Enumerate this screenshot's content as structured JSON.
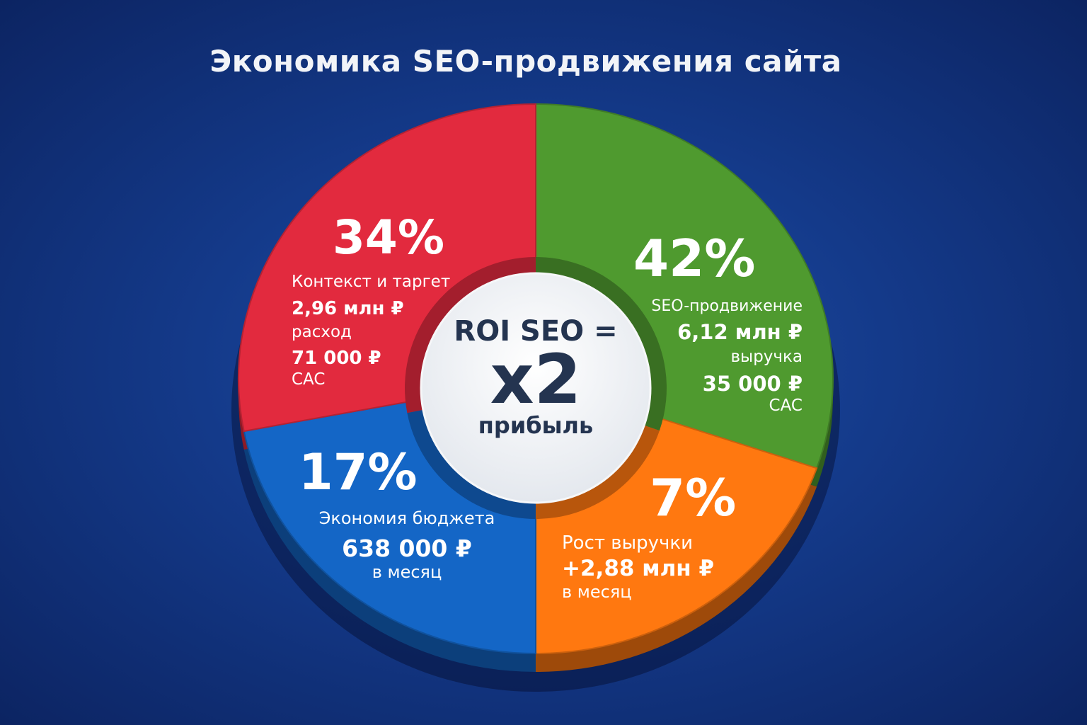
{
  "chart_data": {
    "type": "pie",
    "title": "Экономика SEO-продвижения сайта",
    "slices": [
      {
        "percent": 42,
        "label": "42%",
        "name": "SEO-продвижение",
        "value": "6,12 млн ₽",
        "value_note": "выручка",
        "cac": "35 000 ₽",
        "cac_label": "CAC",
        "color": "#4f9a2f"
      },
      {
        "percent": 7,
        "label": "7%",
        "name": "Рост выручки",
        "value": "+2,88 млн ₽",
        "value_note": "в месяц",
        "color": "#ff7810"
      },
      {
        "percent": 17,
        "label": "17%",
        "name": "Экономия бюджета",
        "value": "638 000 ₽",
        "value_note": "в месяц",
        "color": "#1466c6"
      },
      {
        "percent": 34,
        "label": "34%",
        "name": "Контекст и таргет",
        "value": "2,96 млн ₽",
        "value_note": "расход",
        "cac": "71 000 ₽",
        "cac_label": "CAC",
        "color": "#e22a3e"
      }
    ],
    "center": {
      "line1": "ROI SEO =",
      "line2": "x2",
      "line3": "прибыль"
    }
  }
}
